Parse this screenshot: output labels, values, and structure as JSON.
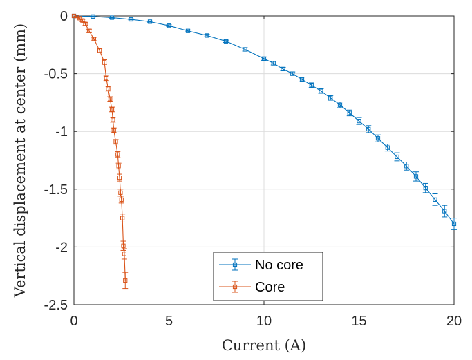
{
  "chart_data": {
    "type": "line",
    "title": "",
    "xlabel": "Current (A)",
    "ylabel": "Vertical displacement at center (mm)",
    "xlim": [
      0,
      20
    ],
    "ylim": [
      -2.5,
      0
    ],
    "xticks": [
      0,
      5,
      10,
      15,
      20
    ],
    "yticks": [
      0,
      -0.5,
      -1,
      -1.5,
      -2,
      -2.5
    ],
    "xtick_labels": [
      "0",
      "5",
      "10",
      "15",
      "20"
    ],
    "ytick_labels": [
      "0",
      "-0.5",
      "-1",
      "-1.5",
      "-2",
      "-2.5"
    ],
    "grid": true,
    "legend_position": "bottom-center",
    "series": [
      {
        "name": "No core",
        "color": "#0072BD",
        "marker": "square",
        "x": [
          0,
          1,
          2,
          3,
          4,
          5,
          6,
          7,
          8,
          9,
          10,
          10.5,
          11,
          11.5,
          12,
          12.5,
          13,
          13.5,
          14,
          14.5,
          15,
          15.5,
          16,
          16.5,
          17,
          17.5,
          18,
          18.5,
          19,
          19.5,
          20
        ],
        "y": [
          0,
          -0.005,
          -0.015,
          -0.03,
          -0.05,
          -0.085,
          -0.13,
          -0.17,
          -0.22,
          -0.29,
          -0.37,
          -0.41,
          -0.46,
          -0.5,
          -0.55,
          -0.6,
          -0.65,
          -0.71,
          -0.77,
          -0.84,
          -0.91,
          -0.98,
          -1.06,
          -1.14,
          -1.22,
          -1.3,
          -1.39,
          -1.49,
          -1.59,
          -1.69,
          -1.8
        ],
        "err": [
          0,
          0.005,
          0.005,
          0.005,
          0.005,
          0.008,
          0.008,
          0.01,
          0.01,
          0.015,
          0.015,
          0.015,
          0.015,
          0.015,
          0.02,
          0.02,
          0.02,
          0.02,
          0.025,
          0.025,
          0.03,
          0.03,
          0.03,
          0.03,
          0.035,
          0.035,
          0.04,
          0.04,
          0.05,
          0.05,
          0.05
        ]
      },
      {
        "name": "Core",
        "color": "#D95319",
        "marker": "square",
        "x": [
          0,
          0.15,
          0.3,
          0.45,
          0.6,
          0.8,
          1.05,
          1.35,
          1.6,
          1.7,
          1.8,
          1.9,
          2.0,
          2.05,
          2.1,
          2.2,
          2.3,
          2.35,
          2.4,
          2.45,
          2.5,
          2.55,
          2.6,
          2.65,
          2.7
        ],
        "y": [
          0,
          -0.01,
          -0.02,
          -0.04,
          -0.07,
          -0.13,
          -0.2,
          -0.3,
          -0.4,
          -0.54,
          -0.63,
          -0.72,
          -0.81,
          -0.9,
          -0.99,
          -1.09,
          -1.2,
          -1.3,
          -1.4,
          -1.53,
          -1.59,
          -1.75,
          -1.99,
          -2.06,
          -2.29
        ],
        "err": [
          0,
          0.005,
          0.008,
          0.01,
          0.012,
          0.015,
          0.015,
          0.02,
          0.02,
          0.02,
          0.02,
          0.02,
          0.02,
          0.02,
          0.02,
          0.02,
          0.025,
          0.025,
          0.03,
          0.03,
          0.03,
          0.035,
          0.04,
          0.045,
          0.07
        ]
      }
    ]
  }
}
